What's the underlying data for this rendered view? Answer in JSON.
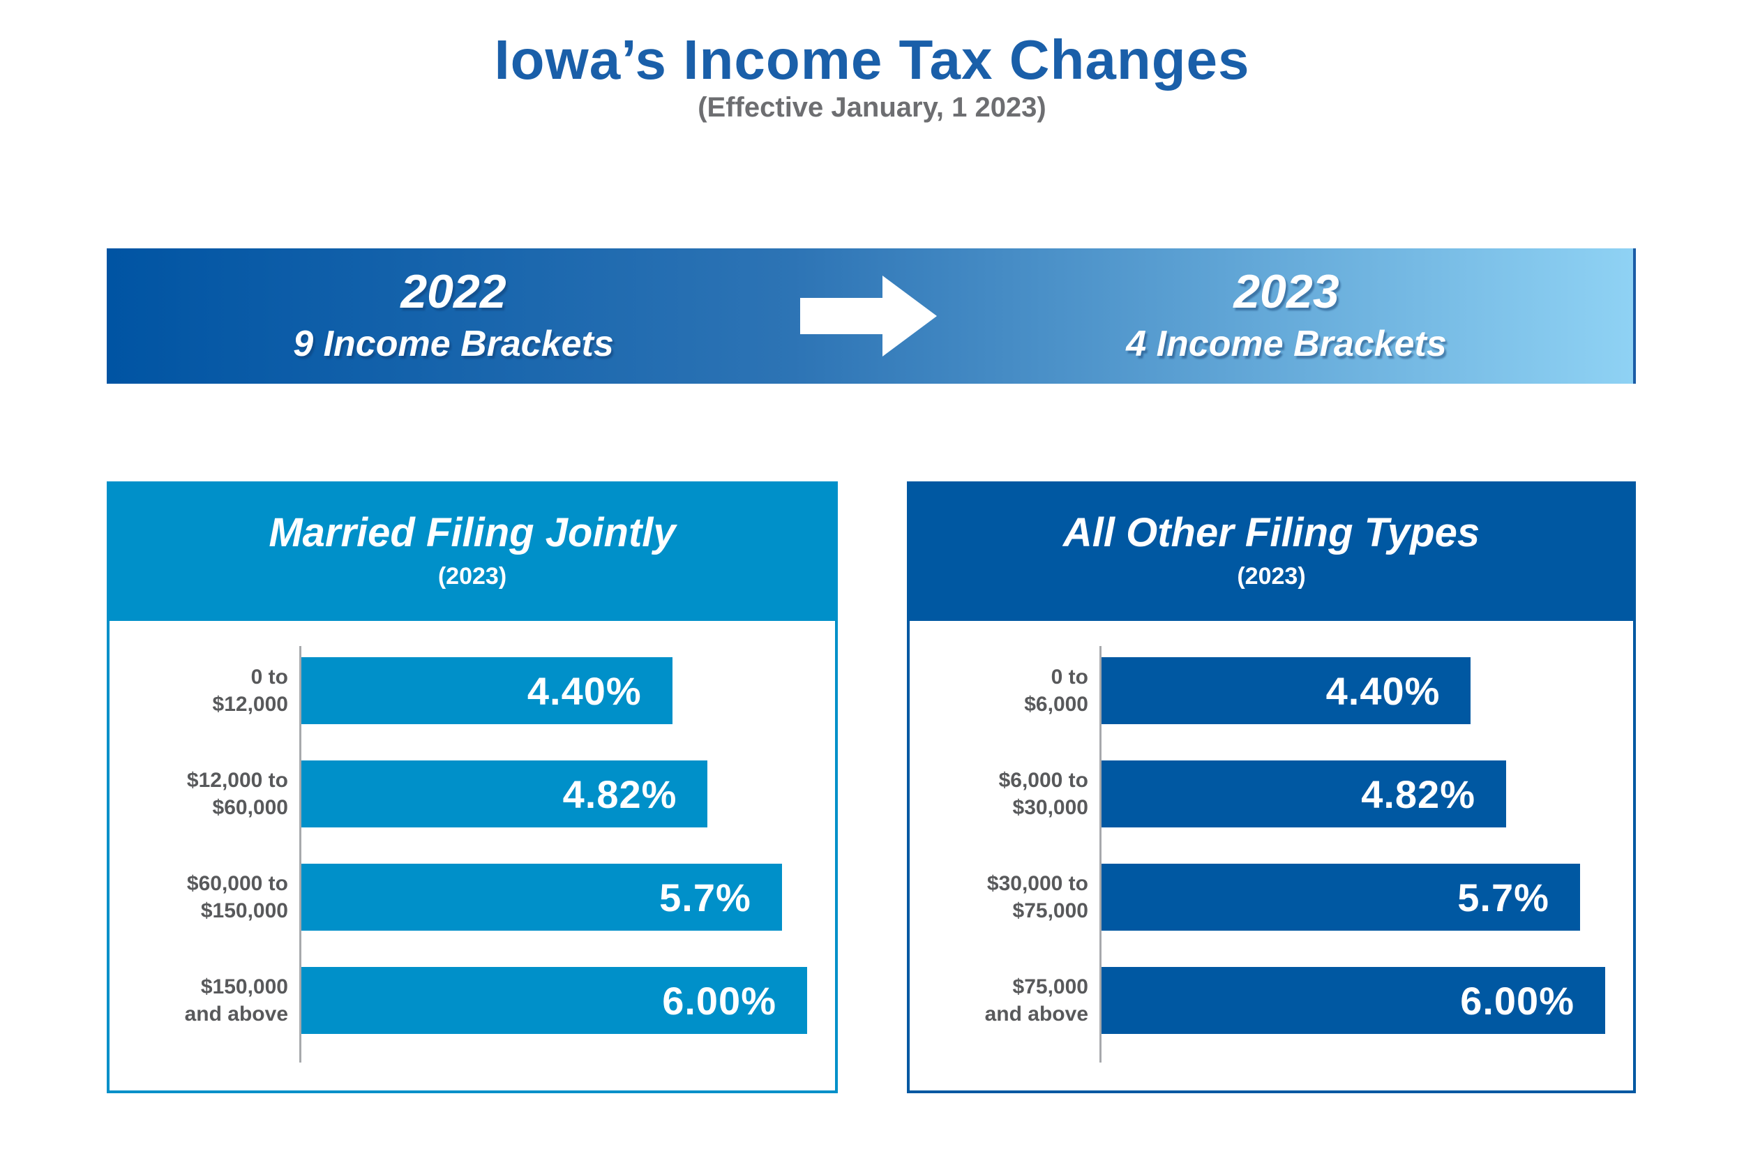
{
  "title": "Iowa’s Income Tax Changes",
  "subtitle": "(Effective January, 1 2023)",
  "banner": {
    "left": {
      "year": "2022",
      "label": "9 Income Brackets"
    },
    "right": {
      "year": "2023",
      "label": "4 Income Brackets"
    },
    "arrow_icon": "right-arrow"
  },
  "colors": {
    "title_blue": "#1a5fa9",
    "subtitle_gray": "#6d6e71",
    "banner_gradient_start": "#0054a3",
    "banner_gradient_end": "#8fd2f4",
    "light_blue": "#0090c9",
    "dark_blue": "#0058a2",
    "category_label_gray": "#58595b",
    "axis_gray": "#a7a9ac",
    "bar_text": "#ffffff"
  },
  "chart_data": [
    {
      "type": "bar",
      "orientation": "horizontal",
      "title": "Married Filing Jointly",
      "subtitle": "(2023)",
      "categories": [
        "0 to $12,000",
        "$12,000 to $60,000",
        "$60,000 to $150,000",
        "$150,000 and above"
      ],
      "category_lines": [
        [
          "0 to",
          "$12,000"
        ],
        [
          "$12,000 to",
          "$60,000"
        ],
        [
          "$60,000 to",
          "$150,000"
        ],
        [
          "$150,000",
          "and above"
        ]
      ],
      "values": [
        4.4,
        4.82,
        5.7,
        6.0
      ],
      "value_labels": [
        "4.40%",
        "4.82%",
        "5.7%",
        "6.00%"
      ],
      "xlim": [
        0,
        6.0
      ],
      "grid": false,
      "legend": "none",
      "bar_color": "#0090c9"
    },
    {
      "type": "bar",
      "orientation": "horizontal",
      "title": "All Other Filing Types",
      "subtitle": "(2023)",
      "categories": [
        "0 to $6,000",
        "$6,000 to $30,000",
        "$30,000 to $75,000",
        "$75,000 and above"
      ],
      "category_lines": [
        [
          "0 to",
          "$6,000"
        ],
        [
          "$6,000 to",
          "$30,000"
        ],
        [
          "$30,000 to",
          "$75,000"
        ],
        [
          "$75,000",
          "and above"
        ]
      ],
      "values": [
        4.4,
        4.82,
        5.7,
        6.0
      ],
      "value_labels": [
        "4.40%",
        "4.82%",
        "5.7%",
        "6.00%"
      ],
      "xlim": [
        0,
        6.0
      ],
      "grid": false,
      "legend": "none",
      "bar_color": "#0058a2"
    }
  ]
}
